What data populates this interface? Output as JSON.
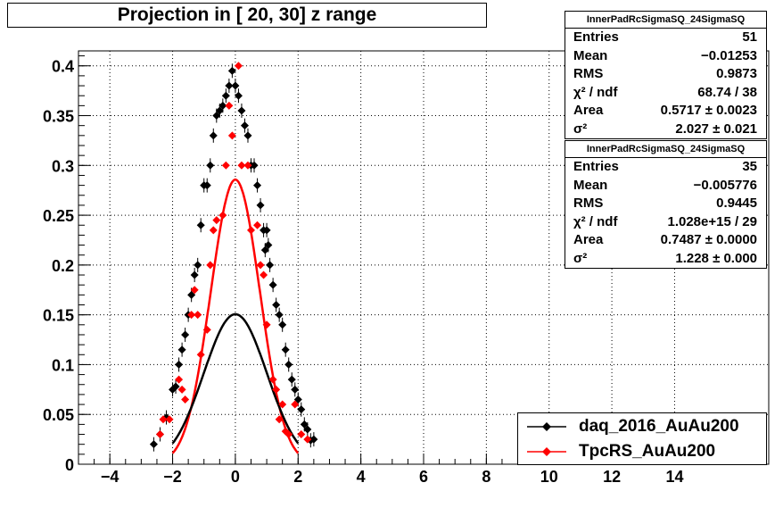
{
  "title": "Projection in [  20,  30] z range",
  "stats": [
    {
      "name": "InnerPadRcSigmaSQ_24SigmaSQ",
      "rows": [
        {
          "label": "Entries",
          "value": "51"
        },
        {
          "label": "Mean",
          "value": "−0.01253"
        },
        {
          "label": "RMS",
          "value": "0.9873"
        },
        {
          "label": "χ² / ndf",
          "value": "68.74 / 38"
        },
        {
          "label": "Area",
          "value": "0.5717 ± 0.0023"
        },
        {
          "label": "σ²",
          "value": "2.027 ± 0.021"
        }
      ]
    },
    {
      "name": "InnerPadRcSigmaSQ_24SigmaSQ",
      "rows": [
        {
          "label": "Entries",
          "value": "35"
        },
        {
          "label": "Mean",
          "value": "−0.005776"
        },
        {
          "label": "RMS",
          "value": "0.9445"
        },
        {
          "label": "χ² / ndf",
          "value": "1.028e+15 / 29"
        },
        {
          "label": "Area",
          "value": "0.7487 ± 0.0000"
        },
        {
          "label": "σ²",
          "value": "1.228 ± 0.000"
        }
      ]
    }
  ],
  "legend": [
    {
      "label": "daq_2016_AuAu200",
      "color": "#000000"
    },
    {
      "label": "TpcRS_AuAu200",
      "color": "#ff0000"
    }
  ],
  "chart_data": {
    "type": "scatter",
    "xlim": [
      -5,
      17
    ],
    "ylim": [
      0,
      0.415
    ],
    "x_ticks": [
      -4,
      -2,
      0,
      2,
      4,
      6,
      8,
      10,
      12,
      14
    ],
    "x_tick_labels": [
      "−4",
      "−2",
      "0",
      "2",
      "4",
      "6",
      "8",
      "10",
      "12",
      "14"
    ],
    "y_ticks": [
      0,
      0.05,
      0.1,
      0.15,
      0.2,
      0.25,
      0.3,
      0.35,
      0.4
    ],
    "y_tick_labels": [
      "0",
      "0.05",
      "0.1",
      "0.15",
      "0.2",
      "0.25",
      "0.3",
      "0.35",
      "0.4"
    ],
    "grid": true,
    "series": [
      {
        "name": "daq_2016_AuAu200",
        "color": "#000000",
        "fit_sigma2": 2.027,
        "fit_area": 0.5717,
        "fit_mean": 0.0,
        "x": [
          -2.6,
          -2.4,
          -2.2,
          -2.0,
          -1.9,
          -1.8,
          -1.7,
          -1.6,
          -1.5,
          -1.4,
          -1.3,
          -1.2,
          -1.1,
          -1.0,
          -0.9,
          -0.8,
          -0.7,
          -0.6,
          -0.5,
          -0.4,
          -0.3,
          -0.2,
          -0.1,
          0.0,
          0.1,
          0.2,
          0.3,
          0.4,
          0.5,
          0.6,
          0.7,
          0.8,
          0.9,
          1.0,
          1.1,
          1.2,
          1.3,
          1.4,
          1.5,
          1.6,
          1.7,
          1.8,
          1.9,
          2.0,
          2.1,
          2.2,
          2.3,
          2.4,
          2.5,
          1.05,
          0.95
        ],
        "y": [
          0.02,
          0.03,
          0.047,
          0.075,
          0.078,
          0.1,
          0.115,
          0.13,
          0.15,
          0.17,
          0.19,
          0.2,
          0.24,
          0.28,
          0.28,
          0.3,
          0.33,
          0.35,
          0.355,
          0.36,
          0.37,
          0.38,
          0.395,
          0.38,
          0.37,
          0.355,
          0.34,
          0.33,
          0.3,
          0.3,
          0.28,
          0.26,
          0.235,
          0.235,
          0.2,
          0.18,
          0.16,
          0.15,
          0.14,
          0.115,
          0.1,
          0.085,
          0.075,
          0.065,
          0.055,
          0.04,
          0.035,
          0.024,
          0.025,
          0.22,
          0.215
        ]
      },
      {
        "name": "TpcRS_AuAu200",
        "color": "#ff0000",
        "fit_sigma2": 1.228,
        "fit_area": 0.7487,
        "fit_mean": 0.0,
        "x": [
          -2.4,
          -2.1,
          -1.8,
          -1.7,
          -1.6,
          -1.4,
          -1.3,
          -1.2,
          -1.1,
          -0.9,
          -0.8,
          -0.7,
          -0.6,
          -0.4,
          -0.3,
          -0.2,
          -0.1,
          0.1,
          0.2,
          0.4,
          0.5,
          0.7,
          0.8,
          0.9,
          1.0,
          1.2,
          1.3,
          1.4,
          1.5,
          1.6,
          1.7,
          1.9,
          2.1,
          2.3,
          -2.3
        ],
        "y": [
          0.03,
          0.045,
          0.085,
          0.075,
          0.065,
          0.15,
          0.175,
          0.15,
          0.11,
          0.135,
          0.2,
          0.235,
          0.245,
          0.25,
          0.3,
          0.36,
          0.33,
          0.4,
          0.3,
          0.3,
          0.235,
          0.24,
          0.2,
          0.19,
          0.14,
          0.085,
          0.075,
          0.045,
          0.06,
          0.033,
          0.03,
          0.06,
          0.03,
          0.025,
          0.045
        ]
      }
    ]
  }
}
